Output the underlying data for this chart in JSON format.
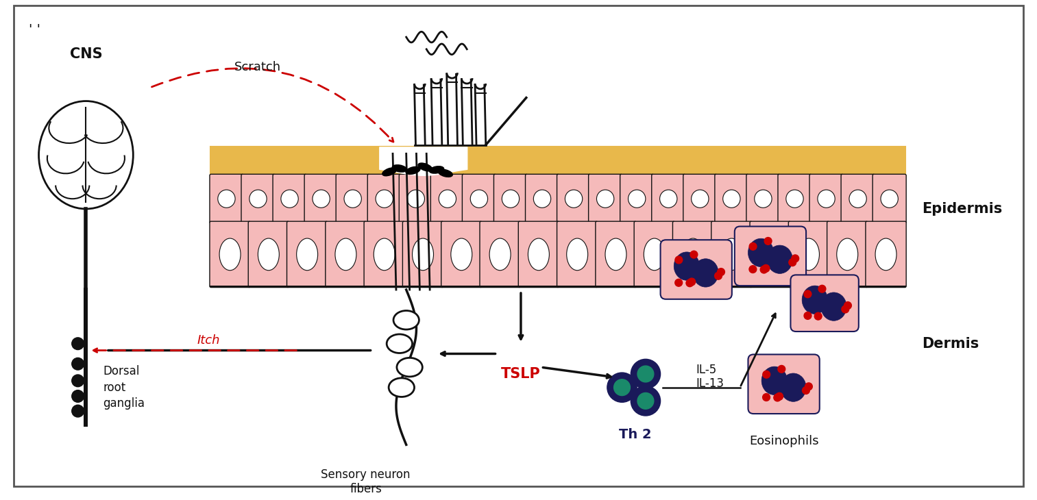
{
  "bg_color": "#ffffff",
  "border_color": "#555555",
  "epidermis_top_color": "#E8B84B",
  "epidermis_cell_color": "#F5BABA",
  "epidermis_cell_border": "#555555",
  "dermis_label": "Dermis",
  "epidermis_label": "Epidermis",
  "cns_label": "CNS",
  "scratch_label": "Scratch",
  "itch_label": "Itch",
  "tslp_label": "TSLP",
  "th2_label": "Th 2",
  "eosinophils_label": "Eosinophils",
  "sensory_label": "Sensory neuron\nfibers",
  "dorsal_label": "Dorsal\nroot\nganglia",
  "il5_label": "IL-5",
  "il13_label": "IL-13",
  "red_color": "#CC0000",
  "dark_color": "#111111",
  "th2_dark": "#1a1a5a",
  "th2_teal": "#1a8a6a",
  "eosinophil_fill": "#F5BABA",
  "eosinophil_nucleus": "#1a1a5a",
  "eosinophil_dots": "#CC0000",
  "figsize": [
    15.13,
    7.3
  ],
  "dpi": 100
}
